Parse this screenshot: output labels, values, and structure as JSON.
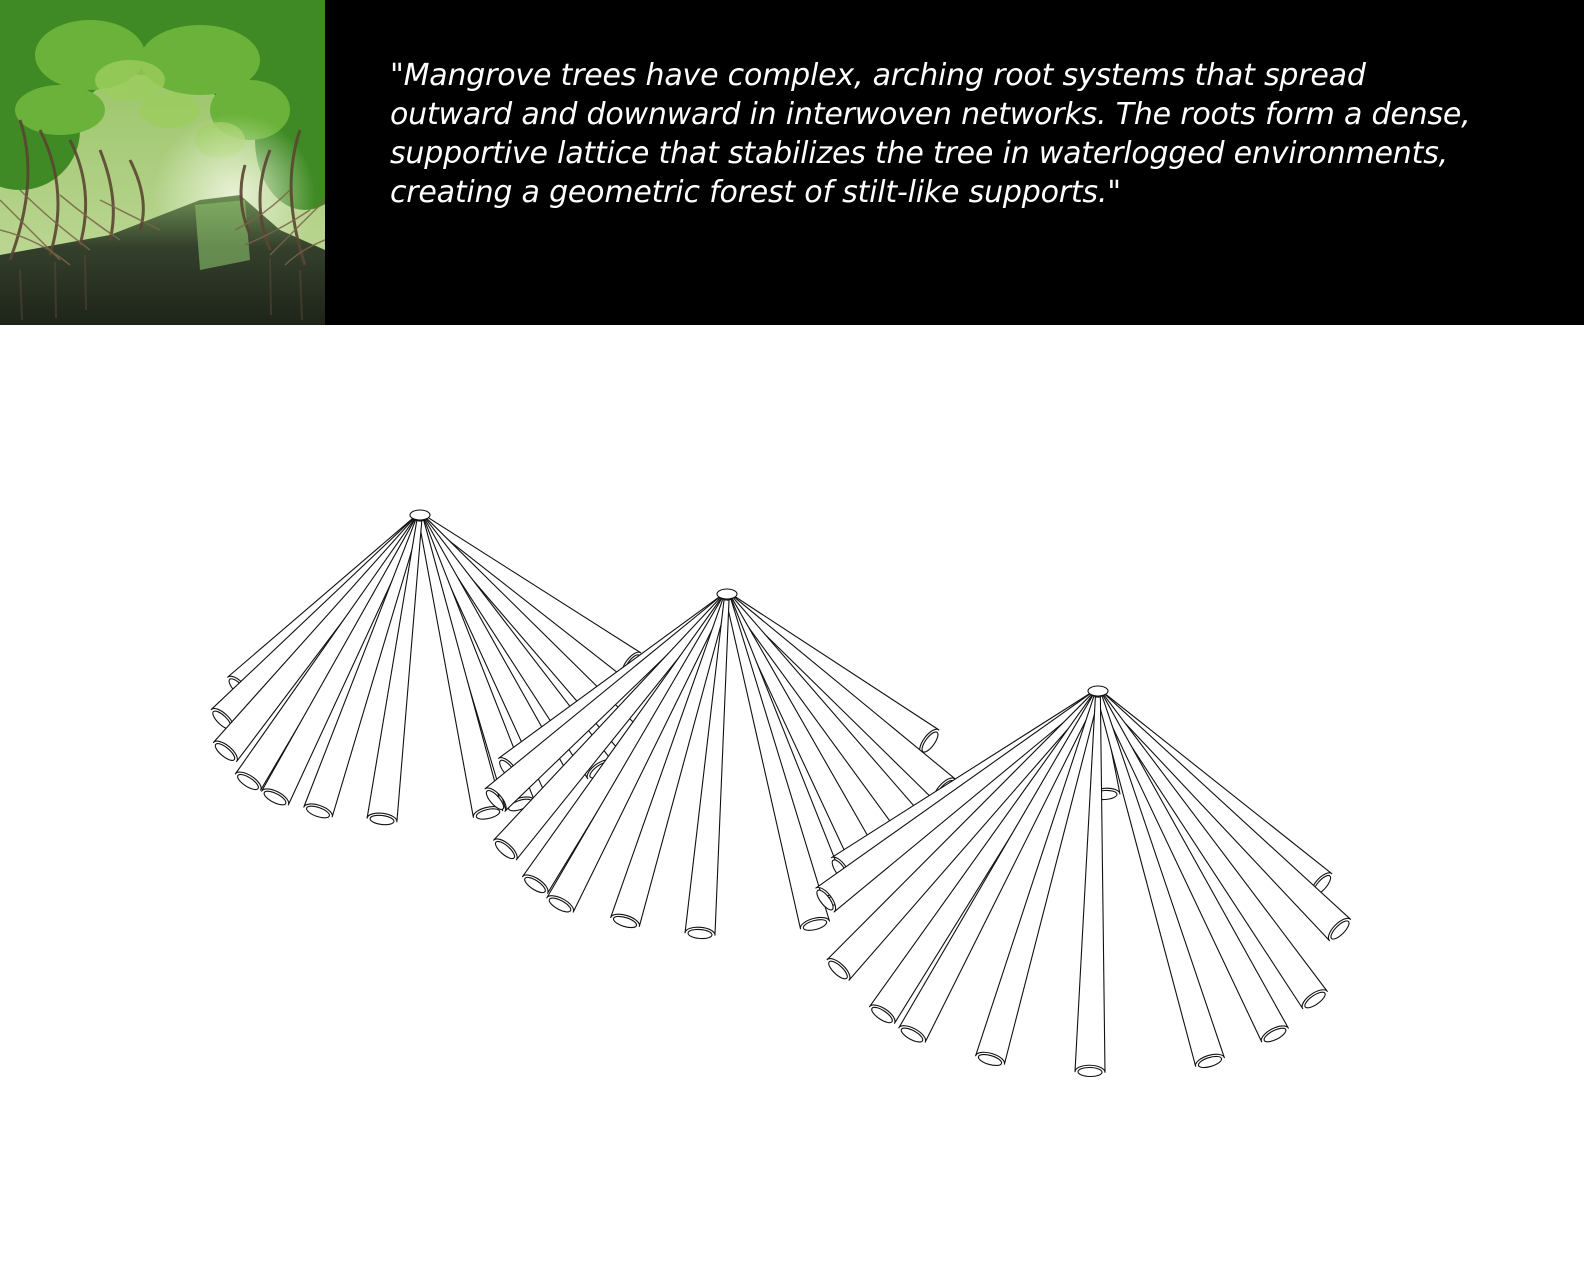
{
  "quote": {
    "text": "\"Mangrove trees have complex, arching root systems that spread\noutward and downward in interwoven networks. The roots form a dense,\nsupportive lattice that stabilizes the tree in waterlogged environments,\ncreating a geometric forest of stilt-like supports.\""
  },
  "colors": {
    "band_background": "#000000",
    "quote_text": "#ffffff",
    "canvas_background": "#ffffff",
    "line_drawing": "#111111",
    "foliage": "#4f9a2c",
    "water": "#3d4a35"
  },
  "photo": {
    "subject": "mangrove-waterway-photo"
  },
  "drawing": {
    "subject": "mangrove-root-structure-drawing",
    "structure_count": 3
  }
}
